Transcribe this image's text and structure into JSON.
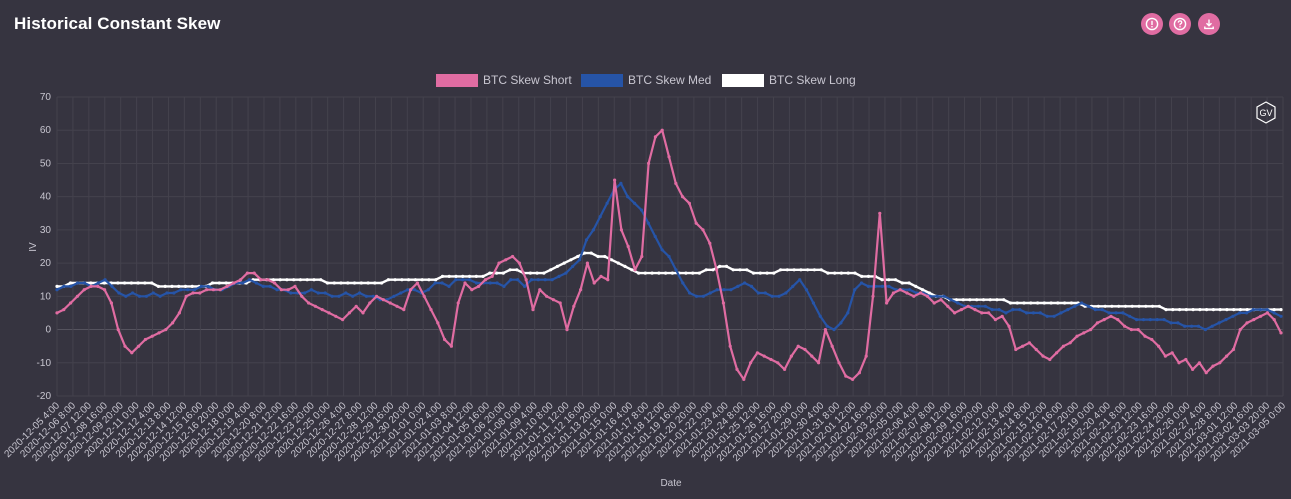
{
  "header": {
    "title": "Historical Constant Skew",
    "icons": [
      "info-icon",
      "help-icon",
      "download-icon"
    ]
  },
  "watermark": {
    "label": "GV"
  },
  "chart_data": {
    "type": "line",
    "xlabel": "Date",
    "ylabel": "IV",
    "ylim": [
      -20,
      70
    ],
    "yticks": [
      -20,
      -10,
      0,
      10,
      20,
      30,
      40,
      50,
      60,
      70
    ],
    "grid": true,
    "legend_position": "top-center",
    "x_tick_labels": [
      "2020-12-05 4:00",
      "2020-12-06 8:00",
      "2020-12-07 12:00",
      "2020-12-08 16:00",
      "2020-12-09 20:00",
      "2020-12-11 0:00",
      "2020-12-12 4:00",
      "2020-12-13 8:00",
      "2020-12-14 12:00",
      "2020-12-15 16:00",
      "2020-12-16 20:00",
      "2020-12-18 0:00",
      "2020-12-19 4:00",
      "2020-12-20 8:00",
      "2020-12-21 12:00",
      "2020-12-22 16:00",
      "2020-12-23 20:00",
      "2020-12-25 0:00",
      "2020-12-26 4:00",
      "2020-12-27 8:00",
      "2020-12-28 12:00",
      "2020-12-29 16:00",
      "2020-12-30 20:00",
      "2021-01-01 0:00",
      "2021-01-02 4:00",
      "2021-01-03 8:00",
      "2021-01-04 12:00",
      "2021-01-05 16:00",
      "2021-01-06 20:00",
      "2021-01-08 0:00",
      "2021-01-09 4:00",
      "2021-01-10 8:00",
      "2021-01-11 12:00",
      "2021-01-12 16:00",
      "2021-01-13 20:00",
      "2021-01-15 0:00",
      "2021-01-16 4:00",
      "2021-01-17 8:00",
      "2021-01-18 12:00",
      "2021-01-19 16:00",
      "2021-01-20 20:00",
      "2021-01-22 0:00",
      "2021-01-23 4:00",
      "2021-01-24 8:00",
      "2021-01-25 12:00",
      "2021-01-26 16:00",
      "2021-01-27 20:00",
      "2021-01-29 0:00",
      "2021-01-30 4:00",
      "2021-01-31 8:00",
      "2021-02-01 12:00",
      "2021-02-02 16:00",
      "2021-02-03 20:00",
      "2021-02-05 0:00",
      "2021-02-06 4:00",
      "2021-02-07 8:00",
      "2021-02-08 12:00",
      "2021-02-09 16:00",
      "2021-02-10 20:00",
      "2021-02-12 0:00",
      "2021-02-13 4:00",
      "2021-02-14 8:00",
      "2021-02-15 12:00",
      "2021-02-16 16:00",
      "2021-02-17 20:00",
      "2021-02-19 0:00",
      "2021-02-20 4:00",
      "2021-02-21 8:00",
      "2021-02-22 12:00",
      "2021-02-23 16:00",
      "2021-02-24 20:00",
      "2021-02-26 0:00",
      "2021-02-27 4:00",
      "2021-02-28 8:00",
      "2021-03-01 12:00",
      "2021-03-02 16:00",
      "2021-03-03 20:00",
      "2021-03-05 0:00"
    ],
    "series": [
      {
        "name": "BTC Skew Short",
        "color": "#e06ca2",
        "values": [
          5,
          6,
          8,
          10,
          12,
          13,
          13,
          12,
          8,
          0,
          -5,
          -7,
          -5,
          -3,
          -2,
          -1,
          0,
          2,
          5,
          10,
          11,
          11,
          12,
          12,
          12,
          13,
          14,
          15,
          17,
          17,
          15,
          15,
          14,
          12,
          12,
          13,
          10,
          8,
          7,
          6,
          5,
          4,
          3,
          5,
          7,
          5,
          8,
          10,
          9,
          8,
          7,
          6,
          12,
          14,
          10,
          6,
          2,
          -3,
          -5,
          8,
          14,
          12,
          13,
          15,
          16,
          20,
          21,
          22,
          20,
          15,
          6,
          12,
          10,
          9,
          8,
          0,
          7,
          12,
          20,
          14,
          16,
          15,
          45,
          30,
          25,
          18,
          22,
          50,
          58,
          60,
          52,
          44,
          40,
          38,
          32,
          30,
          26,
          18,
          8,
          -5,
          -12,
          -15,
          -10,
          -7,
          -8,
          -9,
          -10,
          -12,
          -8,
          -5,
          -6,
          -8,
          -10,
          0,
          -5,
          -10,
          -14,
          -15,
          -13,
          -8,
          10,
          35,
          8,
          11,
          12,
          11,
          10,
          11,
          10,
          8,
          9,
          7,
          5,
          6,
          7,
          6,
          5,
          5,
          3,
          4,
          1,
          -6,
          -5,
          -4,
          -6,
          -8,
          -9,
          -7,
          -5,
          -4,
          -2,
          -1,
          0,
          2,
          3,
          4,
          3,
          1,
          0,
          0,
          -2,
          -3,
          -5,
          -8,
          -7,
          -10,
          -9,
          -12,
          -10,
          -13,
          -11,
          -10,
          -8,
          -6,
          0,
          2,
          3,
          4,
          5,
          3,
          -1
        ]
      },
      {
        "name": "BTC Skew Med",
        "color": "#2654a7",
        "values": [
          12,
          13,
          13,
          14,
          14,
          13,
          14,
          15,
          13,
          11,
          10,
          11,
          10,
          10,
          11,
          10,
          11,
          11,
          12,
          12,
          12,
          13,
          13,
          12,
          12,
          13,
          14,
          14,
          15,
          14,
          13,
          13,
          12,
          12,
          11,
          11,
          11,
          12,
          11,
          11,
          10,
          10,
          11,
          10,
          11,
          10,
          10,
          9,
          9,
          10,
          11,
          12,
          12,
          11,
          12,
          14,
          14,
          13,
          15,
          15,
          15,
          14,
          14,
          14,
          14,
          13,
          15,
          15,
          13,
          15,
          15,
          15,
          15,
          16,
          17,
          19,
          21,
          27,
          30,
          34,
          38,
          42,
          44,
          40,
          38,
          36,
          32,
          28,
          24,
          22,
          18,
          14,
          11,
          10,
          10,
          11,
          12,
          12,
          12,
          13,
          14,
          13,
          11,
          11,
          10,
          10,
          11,
          13,
          15,
          12,
          8,
          4,
          1,
          0,
          2,
          5,
          12,
          14,
          13,
          13,
          13,
          13,
          12,
          12,
          12,
          11,
          11,
          10,
          10,
          10,
          9,
          8,
          7,
          7,
          7,
          7,
          6,
          6,
          5,
          6,
          6,
          5,
          5,
          5,
          4,
          4,
          5,
          6,
          7,
          8,
          7,
          6,
          6,
          5,
          5,
          5,
          4,
          3,
          3,
          3,
          3,
          3,
          2,
          2,
          1,
          1,
          1,
          0,
          1,
          2,
          3,
          4,
          5,
          5,
          6,
          6,
          6,
          5,
          4
        ]
      },
      {
        "name": "BTC Skew Long",
        "color": "#ffffff",
        "values": [
          13,
          13,
          14,
          14,
          14,
          14,
          14,
          14,
          14,
          14,
          14,
          14,
          14,
          14,
          14,
          13,
          13,
          13,
          13,
          13,
          13,
          13,
          13,
          14,
          14,
          14,
          14,
          14,
          14,
          15,
          15,
          15,
          15,
          15,
          15,
          15,
          15,
          15,
          15,
          15,
          14,
          14,
          14,
          14,
          14,
          14,
          14,
          14,
          14,
          15,
          15,
          15,
          15,
          15,
          15,
          15,
          15,
          16,
          16,
          16,
          16,
          16,
          16,
          16,
          17,
          17,
          17,
          18,
          18,
          17,
          17,
          17,
          17,
          18,
          19,
          20,
          21,
          22,
          23,
          23,
          22,
          22,
          21,
          20,
          19,
          18,
          17,
          17,
          17,
          17,
          17,
          17,
          17,
          17,
          17,
          17,
          18,
          18,
          19,
          19,
          18,
          18,
          18,
          17,
          17,
          17,
          17,
          18,
          18,
          18,
          18,
          18,
          18,
          18,
          17,
          17,
          17,
          17,
          17,
          16,
          16,
          16,
          15,
          15,
          15,
          14,
          14,
          13,
          12,
          11,
          10,
          10,
          9,
          9,
          9,
          9,
          9,
          9,
          9,
          9,
          9,
          8,
          8,
          8,
          8,
          8,
          8,
          8,
          8,
          8,
          8,
          8,
          7,
          7,
          7,
          7,
          7,
          7,
          7,
          7,
          7,
          7,
          7,
          7,
          6,
          6,
          6,
          6,
          6,
          6,
          6,
          6,
          6,
          6,
          6,
          6,
          6,
          6,
          6,
          6,
          6,
          6
        ]
      }
    ]
  }
}
